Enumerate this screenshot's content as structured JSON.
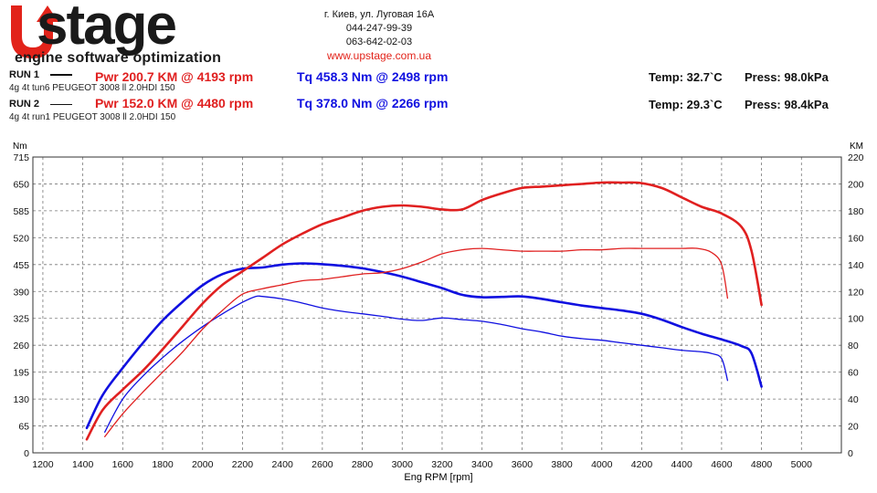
{
  "header": {
    "logo_text": "UPstage",
    "logo_sub": "engine software optimization",
    "contact": {
      "address": "г. Киев, ул. Луговая 16А",
      "phone1": "044-247-99-39",
      "phone2": "063-642-02-03",
      "website": "www.upstage.com.ua"
    },
    "runs": [
      {
        "label": "RUN 1",
        "desc": "4g 4t tun6 PEUGEOT 3008 ll 2.0HDI 150",
        "pwr": "Pwr  200.7 KM @ 4193 rpm",
        "tq": "Tq 458.3 Nm @ 2498 rpm",
        "temp": "Temp: 32.7`C",
        "press": "Press: 98.0kPa"
      },
      {
        "label": "RUN 2",
        "desc": "4g 4t run1 PEUGEOT 3008 ll 2.0HDI 150",
        "pwr": "Pwr  152.0 KM @ 4480 rpm",
        "tq": "Tq 378.0 Nm @ 2266 rpm",
        "temp": "Temp: 29.3`C",
        "press": "Press: 98.4kPa"
      }
    ]
  },
  "chart_data": {
    "type": "line",
    "xlabel": "Eng RPM [rpm]",
    "ylabel_left": "Nm",
    "ylabel_right": "KM",
    "xlim": [
      1150,
      5200
    ],
    "ylim_left": [
      0,
      715
    ],
    "ylim_right": [
      0,
      220
    ],
    "x_ticks": [
      1200,
      1400,
      1600,
      1800,
      2000,
      2200,
      2400,
      2600,
      2800,
      3000,
      3200,
      3400,
      3600,
      3800,
      4000,
      4200,
      4400,
      4600,
      4800,
      5000
    ],
    "y_ticks_left": [
      0,
      65,
      130,
      195,
      260,
      325,
      390,
      455,
      520,
      585,
      650,
      715
    ],
    "y_ticks_right": [
      0,
      20,
      40,
      60,
      80,
      100,
      120,
      140,
      160,
      180,
      200,
      220
    ],
    "grid": true,
    "series": [
      {
        "name": "Run 1 Tq",
        "axis": "left",
        "color": "#1010e0",
        "width": 2.6,
        "x": [
          1420,
          1500,
          1600,
          1700,
          1800,
          1900,
          2000,
          2100,
          2200,
          2300,
          2400,
          2500,
          2600,
          2700,
          2800,
          2900,
          3000,
          3100,
          3200,
          3300,
          3400,
          3500,
          3600,
          3700,
          3800,
          3900,
          4000,
          4100,
          4200,
          4300,
          4400,
          4500,
          4600,
          4700,
          4750,
          4800
        ],
        "y": [
          60,
          140,
          205,
          265,
          320,
          365,
          405,
          432,
          445,
          448,
          455,
          458,
          456,
          452,
          446,
          437,
          426,
          412,
          398,
          382,
          376,
          377,
          378,
          372,
          364,
          356,
          350,
          344,
          336,
          322,
          304,
          288,
          274,
          258,
          240,
          160
        ]
      },
      {
        "name": "Run 2 Tq",
        "axis": "left",
        "color": "#1010e0",
        "width": 1.3,
        "x": [
          1510,
          1600,
          1700,
          1800,
          1900,
          2000,
          2100,
          2200,
          2266,
          2300,
          2400,
          2500,
          2600,
          2700,
          2800,
          2900,
          3000,
          3100,
          3200,
          3300,
          3400,
          3500,
          3600,
          3700,
          3800,
          3900,
          4000,
          4100,
          4200,
          4300,
          4400,
          4500,
          4550,
          4600,
          4630
        ],
        "y": [
          50,
          130,
          185,
          230,
          270,
          305,
          336,
          364,
          378,
          378,
          372,
          362,
          350,
          342,
          336,
          330,
          323,
          320,
          326,
          322,
          318,
          310,
          300,
          292,
          282,
          276,
          272,
          266,
          260,
          254,
          248,
          244,
          240,
          228,
          175
        ]
      },
      {
        "name": "Run 1 Pwr",
        "axis": "right",
        "color": "#e02020",
        "width": 2.6,
        "x": [
          1420,
          1500,
          1600,
          1700,
          1800,
          1900,
          2000,
          2100,
          2200,
          2300,
          2400,
          2500,
          2600,
          2700,
          2800,
          2900,
          3000,
          3100,
          3200,
          3300,
          3400,
          3500,
          3600,
          3700,
          3800,
          3900,
          4000,
          4100,
          4193,
          4300,
          4400,
          4500,
          4600,
          4700,
          4750,
          4800
        ],
        "y": [
          10,
          32,
          47,
          61,
          77,
          94,
          111,
          125,
          135,
          145,
          155,
          163,
          170,
          175,
          180,
          183,
          184,
          183,
          181,
          181,
          188,
          193,
          197,
          198,
          199,
          200,
          201,
          201,
          200.7,
          197,
          190,
          183,
          178,
          168,
          150,
          110
        ]
      },
      {
        "name": "Run 2 Pwr",
        "axis": "right",
        "color": "#e02020",
        "width": 1.3,
        "x": [
          1510,
          1600,
          1700,
          1800,
          1900,
          2000,
          2100,
          2200,
          2300,
          2400,
          2500,
          2600,
          2700,
          2800,
          2900,
          3000,
          3100,
          3200,
          3300,
          3400,
          3500,
          3600,
          3700,
          3800,
          3900,
          4000,
          4100,
          4200,
          4300,
          4400,
          4480,
          4550,
          4600,
          4630
        ],
        "y": [
          12,
          29,
          45,
          60,
          75,
          92,
          106,
          118,
          122,
          125,
          128,
          129,
          131,
          133,
          134,
          137,
          142,
          148,
          151,
          152,
          151,
          150,
          150,
          150,
          151,
          151,
          152,
          152,
          152,
          152,
          152,
          149,
          140,
          115
        ]
      }
    ]
  }
}
